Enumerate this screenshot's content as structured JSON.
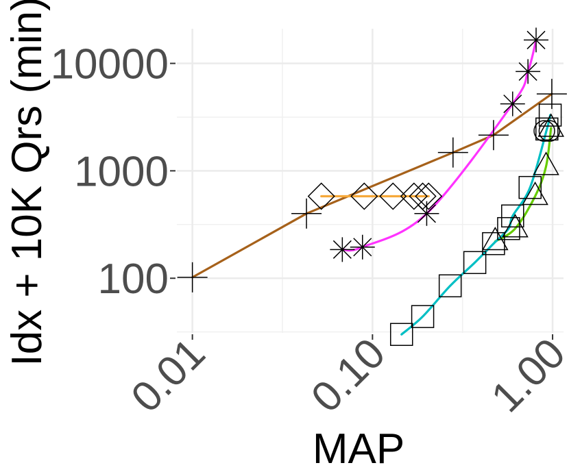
{
  "chart_data": {
    "type": "line",
    "title": "",
    "xlabel": "MAP",
    "ylabel": "Idx + 10K Qrs (min)",
    "xscale": "log10",
    "yscale": "log10",
    "xlim": [
      0.0082,
      1.15
    ],
    "ylim": [
      31,
      21000
    ],
    "grid": true,
    "legend": "none",
    "x_ticks": [
      {
        "value": 0.01,
        "label": "0.01"
      },
      {
        "value": 0.1,
        "label": "0.10"
      },
      {
        "value": 1.0,
        "label": "1.00"
      }
    ],
    "y_ticks": [
      {
        "value": 100,
        "label": "100"
      },
      {
        "value": 1000,
        "label": "1000"
      },
      {
        "value": 10000,
        "label": "10000"
      }
    ],
    "series": [
      {
        "color": "#a6611a",
        "line": true,
        "marker": "plus",
        "points": [
          [
            0.01,
            102
          ],
          [
            0.043,
            400
          ],
          [
            0.28,
            1480
          ],
          [
            0.47,
            2150
          ],
          [
            0.99,
            5200
          ]
        ]
      },
      {
        "color": "#f6a93b",
        "line": true,
        "marker": "diamond",
        "points": [
          [
            0.052,
            580
          ],
          [
            0.09,
            580
          ],
          [
            0.13,
            580
          ],
          [
            0.17,
            580
          ],
          [
            0.19,
            580
          ],
          [
            0.205,
            580
          ]
        ]
      },
      {
        "color": "#ff33ff",
        "line": true,
        "marker": "star",
        "points": [
          [
            0.068,
            185
          ],
          [
            0.088,
            195
          ],
          [
            0.2,
            400
          ],
          [
            0.6,
            4200
          ],
          [
            0.73,
            8400
          ],
          [
            0.81,
            16500
          ]
        ]
      },
      {
        "color": "#66cc00",
        "line": true,
        "marker": "triangle",
        "points": [
          [
            0.48,
            220
          ],
          [
            0.62,
            290
          ],
          [
            0.8,
            580
          ],
          [
            0.92,
            1100
          ],
          [
            0.98,
            2500
          ]
        ]
      },
      {
        "color": "#00bfc4",
        "line": true,
        "marker": "square",
        "points": [
          [
            0.145,
            30
          ],
          [
            0.19,
            44
          ],
          [
            0.27,
            85
          ],
          [
            0.37,
            140
          ],
          [
            0.47,
            210
          ],
          [
            0.57,
            290
          ],
          [
            0.6,
            380
          ],
          [
            0.75,
            700
          ],
          [
            0.93,
            2450
          ],
          [
            0.97,
            3300
          ]
        ]
      },
      {
        "color": "#000000",
        "line": false,
        "marker": "circle",
        "points": [
          [
            0.9,
            2350
          ],
          [
            0.96,
            2350
          ]
        ]
      }
    ]
  }
}
